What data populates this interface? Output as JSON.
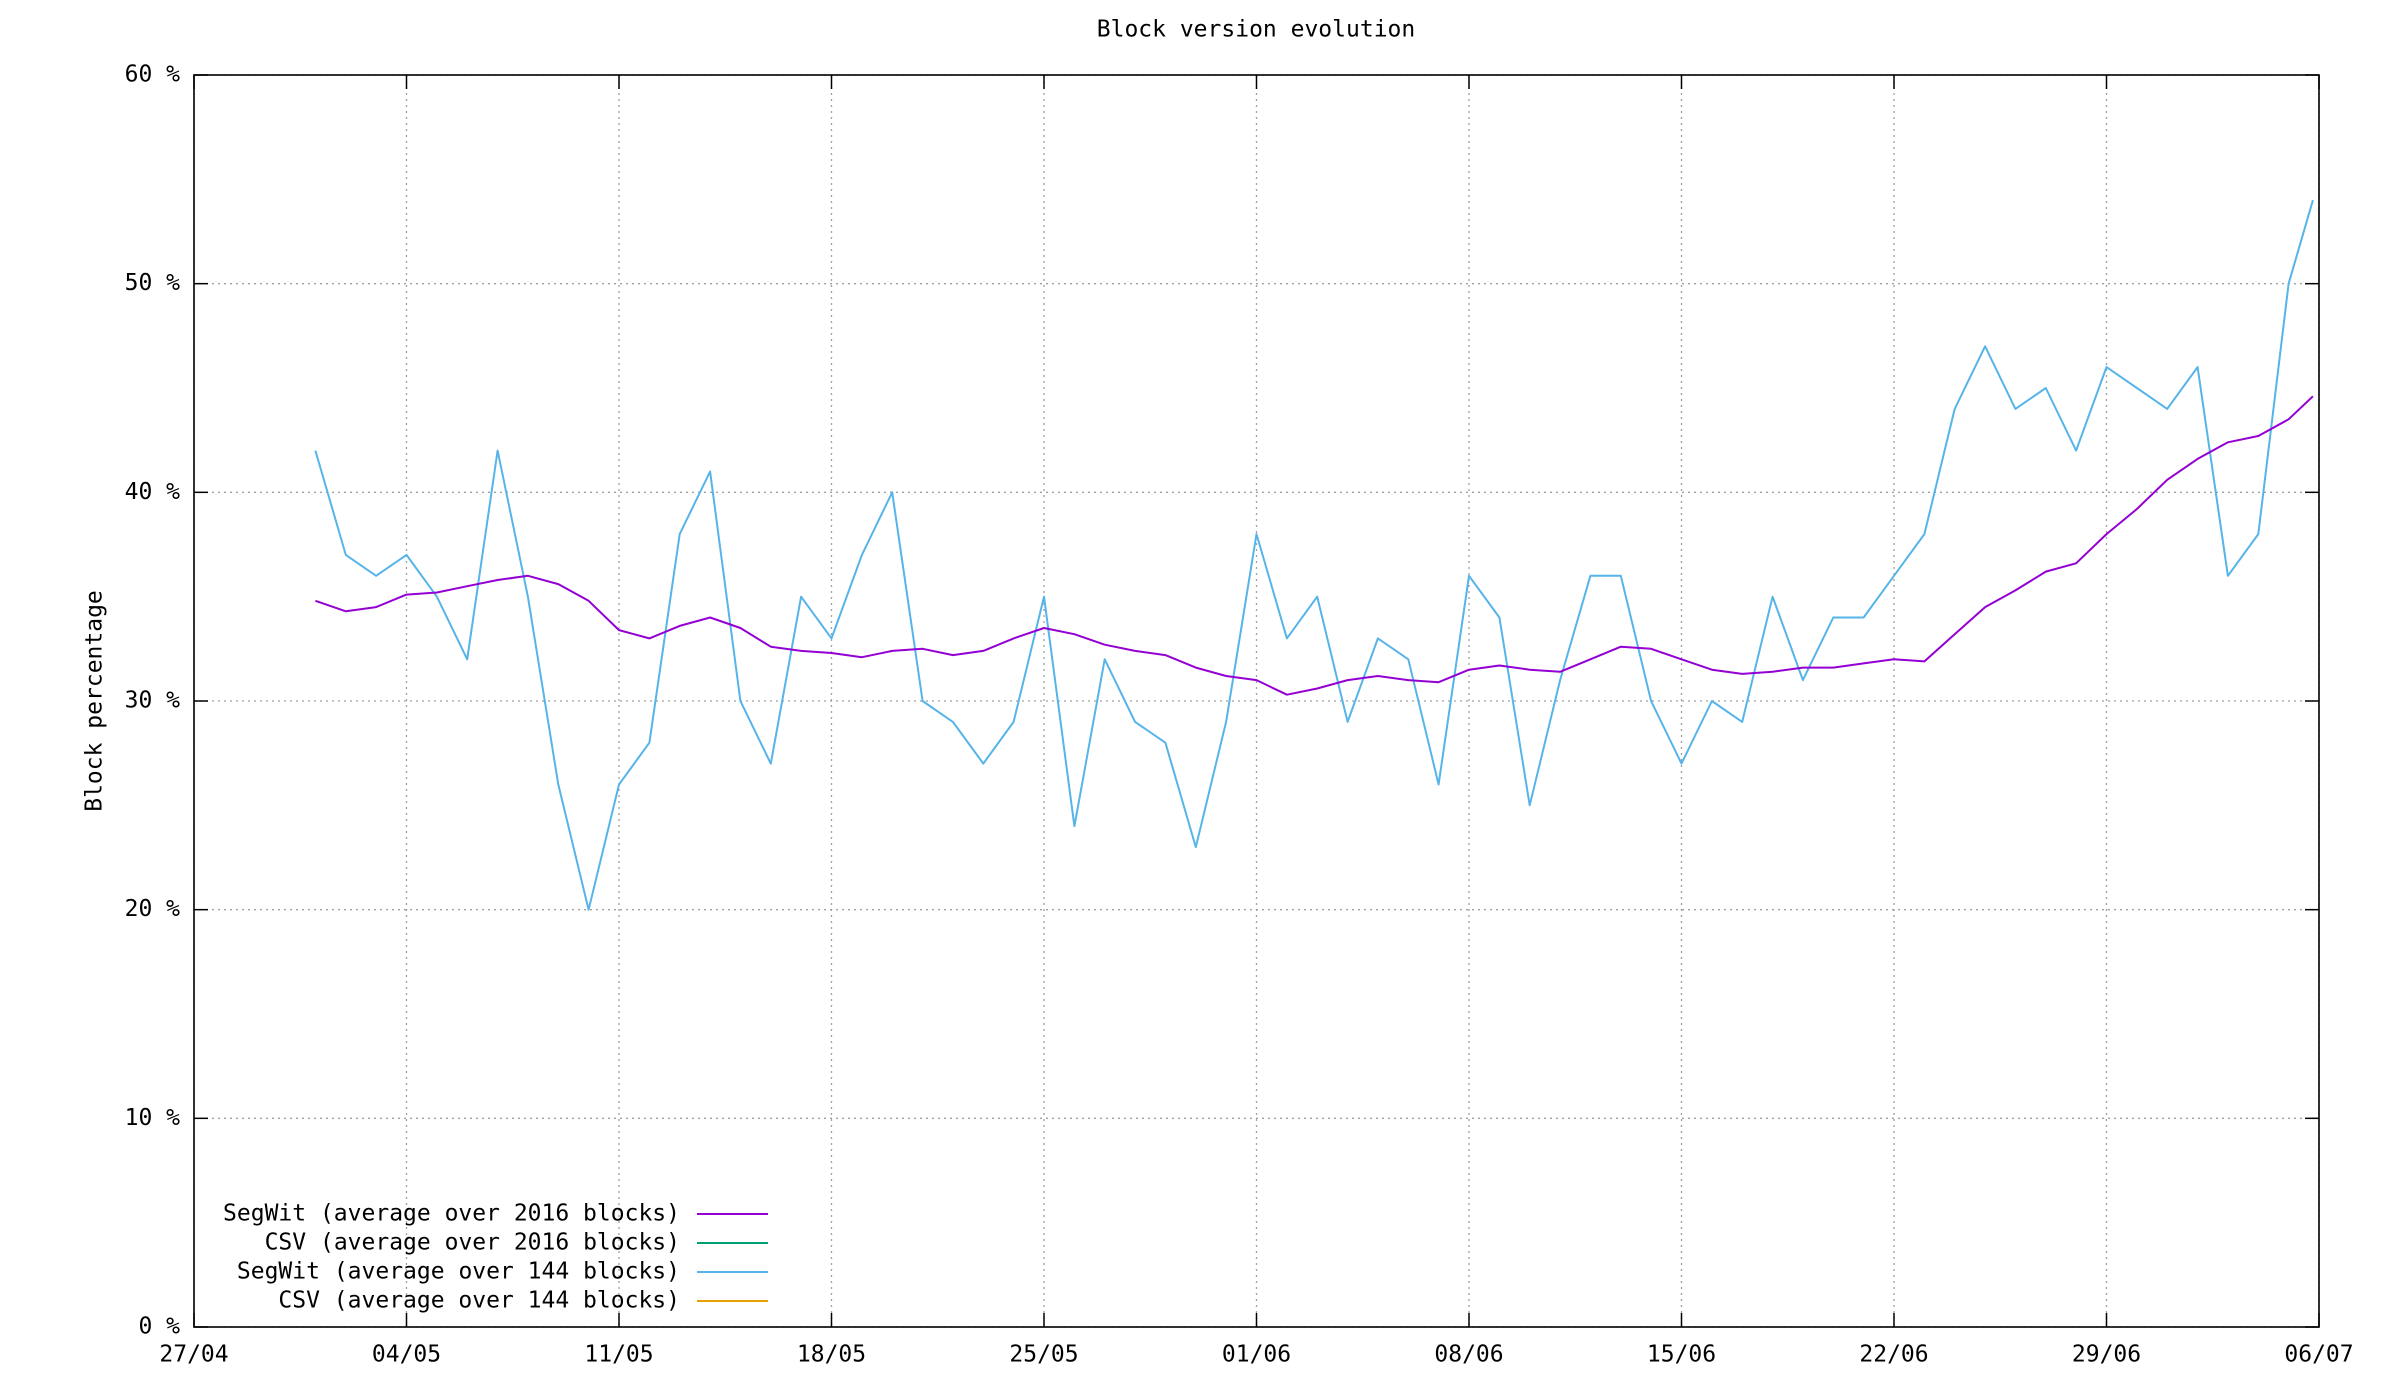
{
  "chart_data": {
    "type": "line",
    "title": "Block version evolution",
    "y_label": "Block percentage",
    "x": [
      4,
      5,
      6,
      7,
      8,
      9,
      10,
      11,
      12,
      13,
      14,
      15,
      16,
      17,
      18,
      19,
      20,
      21,
      22,
      23,
      24,
      25,
      26,
      27,
      28,
      29,
      30,
      31,
      32,
      33,
      34,
      35,
      36,
      37,
      38,
      39,
      40,
      41,
      42,
      43,
      44,
      45,
      46,
      47,
      48,
      49,
      50,
      51,
      52,
      53,
      54,
      55,
      56,
      57,
      58,
      59,
      60,
      61,
      62,
      63,
      64,
      65,
      66,
      67,
      68,
      69,
      69.8
    ],
    "xlim": [
      0,
      70
    ],
    "xticks": [
      {
        "value": 0,
        "label": "27/04"
      },
      {
        "value": 7,
        "label": "04/05"
      },
      {
        "value": 14,
        "label": "11/05"
      },
      {
        "value": 21,
        "label": "18/05"
      },
      {
        "value": 28,
        "label": "25/05"
      },
      {
        "value": 35,
        "label": "01/06"
      },
      {
        "value": 42,
        "label": "08/06"
      },
      {
        "value": 49,
        "label": "15/06"
      },
      {
        "value": 56,
        "label": "22/06"
      },
      {
        "value": 63,
        "label": "29/06"
      },
      {
        "value": 70,
        "label": "06/07"
      }
    ],
    "ylim": [
      0,
      60
    ],
    "yticks": [
      {
        "value": 0,
        "label": "0 %"
      },
      {
        "value": 10,
        "label": "10 %"
      },
      {
        "value": 20,
        "label": "20 %"
      },
      {
        "value": 30,
        "label": "30 %"
      },
      {
        "value": 40,
        "label": "40 %"
      },
      {
        "value": 50,
        "label": "50 %"
      },
      {
        "value": 60,
        "label": "60 %"
      }
    ],
    "grid": true,
    "legend": "bottom-left",
    "series": [
      {
        "name": "SegWit (average over 2016 blocks)",
        "color": "#9400d3",
        "values": [
          34.8,
          34.3,
          34.5,
          35.1,
          35.2,
          35.5,
          35.8,
          36.0,
          35.6,
          34.8,
          33.4,
          33.0,
          33.6,
          34.0,
          33.5,
          32.6,
          32.4,
          32.3,
          32.1,
          32.4,
          32.5,
          32.2,
          32.4,
          33.0,
          33.5,
          33.2,
          32.7,
          32.4,
          32.2,
          31.6,
          31.2,
          31.0,
          30.3,
          30.6,
          31.0,
          31.2,
          31.0,
          30.9,
          31.5,
          31.7,
          31.5,
          31.4,
          32.0,
          32.6,
          32.5,
          32.0,
          31.5,
          31.3,
          31.4,
          31.6,
          31.6,
          31.8,
          32.0,
          31.9,
          33.2,
          34.5,
          35.3,
          36.2,
          36.6,
          38.0,
          39.2,
          40.6,
          41.6,
          42.4,
          42.7,
          43.5,
          44.6
        ]
      },
      {
        "name": "CSV (average over 2016 blocks)",
        "color": "#009e73",
        "values": [
          null,
          null,
          null,
          null,
          null,
          null,
          null,
          null,
          null,
          null,
          null,
          null,
          null,
          null,
          null,
          null,
          null,
          null,
          null,
          null,
          null,
          null,
          null,
          null,
          null,
          null,
          null,
          null,
          null,
          null,
          null,
          null,
          null,
          null,
          null,
          null,
          null,
          null,
          null,
          null,
          null,
          null,
          null,
          null,
          null,
          null,
          null,
          null,
          null,
          null,
          null,
          null,
          null,
          null,
          null,
          null,
          null,
          null,
          null,
          null,
          null,
          null,
          null,
          null,
          null,
          null,
          null
        ]
      },
      {
        "name": "SegWit (average over 144 blocks)",
        "color": "#56b4e9",
        "values": [
          42,
          37,
          36,
          37,
          35,
          32,
          42,
          35,
          26,
          20,
          26,
          28,
          38,
          41,
          30,
          27,
          35,
          33,
          37,
          40,
          30,
          29,
          27,
          29,
          35,
          24,
          32,
          29,
          28,
          23,
          29,
          38,
          33,
          35,
          29,
          33,
          32,
          26,
          36,
          34,
          25,
          31,
          36,
          36,
          30,
          27,
          30,
          29,
          35,
          31,
          34,
          34,
          36,
          38,
          44,
          47,
          44,
          45,
          42,
          46,
          45,
          44,
          46,
          36,
          38,
          50,
          54
        ]
      },
      {
        "name": "CSV (average over 144 blocks)",
        "color": "#e69f00",
        "values": [
          null,
          null,
          null,
          null,
          null,
          null,
          null,
          null,
          null,
          null,
          null,
          null,
          null,
          null,
          null,
          null,
          null,
          null,
          null,
          null,
          null,
          null,
          null,
          null,
          null,
          null,
          null,
          null,
          null,
          null,
          null,
          null,
          null,
          null,
          null,
          null,
          null,
          null,
          null,
          null,
          null,
          null,
          null,
          null,
          null,
          null,
          null,
          null,
          null,
          null,
          null,
          null,
          null,
          null,
          null,
          null,
          null,
          null,
          null,
          null,
          null,
          null,
          null,
          null,
          null,
          null,
          null
        ]
      }
    ]
  }
}
